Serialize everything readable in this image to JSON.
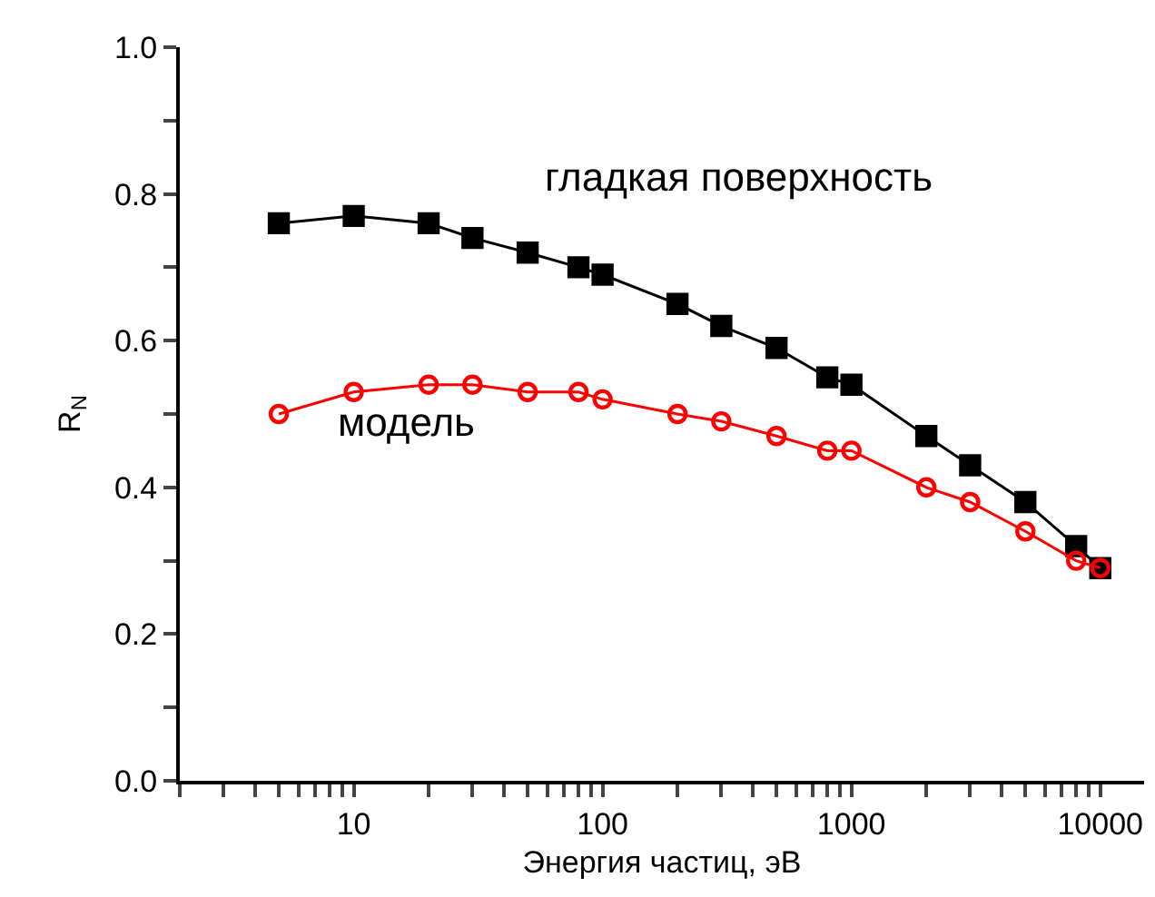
{
  "chart_data": {
    "type": "line",
    "xlabel": "Энергия частиц, эВ",
    "ylabel": "R$_{N}$",
    "log": "x",
    "legend": false,
    "line_style": "solid",
    "x": [
      5,
      10,
      20,
      30,
      50,
      80,
      100,
      200,
      300,
      500,
      800,
      1000,
      2000,
      3000,
      5000,
      8000,
      10000
    ],
    "xlim": [
      2,
      15000
    ],
    "xticks": [
      {
        "value": 2,
        "label": null
      },
      {
        "value": 3,
        "label": null
      },
      {
        "value": 4,
        "label": null
      },
      {
        "value": 5,
        "label": null
      },
      {
        "value": 6,
        "label": null
      },
      {
        "value": 7,
        "label": null
      },
      {
        "value": 8,
        "label": null
      },
      {
        "value": 9,
        "label": null
      },
      10,
      {
        "value": 20,
        "label": null
      },
      {
        "value": 30,
        "label": null
      },
      {
        "value": 40,
        "label": null
      },
      {
        "value": 50,
        "label": null
      },
      {
        "value": 60,
        "label": null
      },
      {
        "value": 70,
        "label": null
      },
      {
        "value": 80,
        "label": null
      },
      {
        "value": 90,
        "label": null
      },
      100,
      {
        "value": 200,
        "label": null
      },
      {
        "value": 300,
        "label": null
      },
      {
        "value": 400,
        "label": null
      },
      {
        "value": 500,
        "label": null
      },
      {
        "value": 600,
        "label": null
      },
      {
        "value": 700,
        "label": null
      },
      {
        "value": 800,
        "label": null
      },
      {
        "value": 900,
        "label": null
      },
      1000,
      {
        "value": 2000,
        "label": null
      },
      {
        "value": 3000,
        "label": null
      },
      {
        "value": 4000,
        "label": null
      },
      {
        "value": 5000,
        "label": null
      },
      {
        "value": 6000,
        "label": null
      },
      {
        "value": 7000,
        "label": null
      },
      {
        "value": 8000,
        "label": null
      },
      {
        "value": 9000,
        "label": null
      },
      10000
    ],
    "ylim": [
      0,
      1.0
    ],
    "yticks": [
      {
        "value": 0,
        "label": "0.0"
      },
      {
        "value": 0.1,
        "label": null
      },
      0.2,
      {
        "value": 0.3,
        "label": null
      },
      0.4,
      {
        "value": 0.5,
        "label": null
      },
      0.6,
      {
        "value": 0.7,
        "label": null
      },
      0.8,
      {
        "value": 0.9,
        "label": null
      },
      {
        "value": 1.0,
        "label": "1.0"
      }
    ],
    "series": [
      {
        "name": "гладкая поверхность",
        "color": "#000000",
        "marker": "square",
        "values": [
          0.76,
          0.77,
          0.76,
          0.74,
          0.72,
          0.7,
          0.69,
          0.65,
          0.62,
          0.59,
          0.55,
          0.54,
          0.47,
          0.43,
          0.38,
          0.32,
          0.29
        ]
      },
      {
        "name": "модель",
        "color": "#ff0000",
        "marker": "circle-open",
        "values": [
          0.5,
          0.53,
          0.54,
          0.54,
          0.53,
          0.53,
          0.52,
          0.5,
          0.49,
          0.47,
          0.45,
          0.45,
          0.4,
          0.38,
          0.34,
          0.3,
          0.29
        ]
      }
    ]
  }
}
